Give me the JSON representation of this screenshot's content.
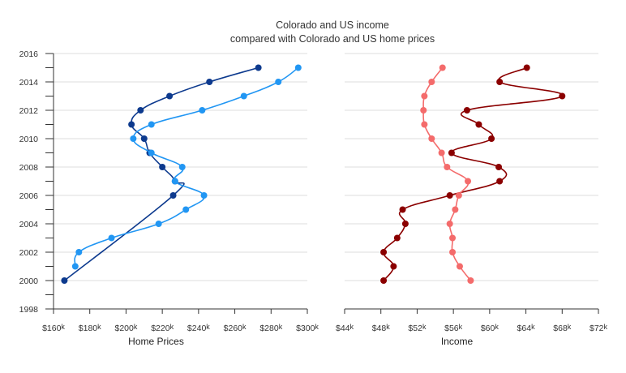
{
  "chart_data": {
    "type": "line",
    "title_lines": [
      "Colorado and US income",
      "compared with Colorado and US home prices"
    ],
    "y_axis": {
      "range": [
        1998,
        2016
      ],
      "ticks": [
        1998,
        2000,
        2002,
        2004,
        2006,
        2008,
        2010,
        2012,
        2014,
        2016
      ]
    },
    "grid": "horizontal",
    "panels": [
      {
        "xlabel": "Home Prices",
        "xlim": [
          160,
          300
        ],
        "x_ticks": [
          {
            "value": 160,
            "main": "$160",
            "suffix": "k"
          },
          {
            "value": 180,
            "main": "$180",
            "suffix": "k"
          },
          {
            "value": 200,
            "main": "$200",
            "suffix": "k"
          },
          {
            "value": 220,
            "main": "$220",
            "suffix": "k"
          },
          {
            "value": 240,
            "main": "$240",
            "suffix": "k"
          },
          {
            "value": 260,
            "main": "$260",
            "suffix": "k"
          },
          {
            "value": 280,
            "main": "$280",
            "suffix": "k"
          },
          {
            "value": 300,
            "main": "$300",
            "suffix": "k"
          }
        ],
        "series": [
          {
            "color": "#0d3a8e",
            "points": [
              [
                166,
                2000
              ],
              [
                226,
                2006
              ],
              [
                227,
                2007
              ],
              [
                220,
                2008
              ],
              [
                213,
                2009
              ],
              [
                210,
                2010
              ],
              [
                203,
                2011
              ],
              [
                208,
                2012
              ],
              [
                224,
                2013
              ],
              [
                246,
                2014
              ],
              [
                273,
                2015
              ]
            ]
          },
          {
            "color": "#2196f3",
            "points": [
              [
                172,
                2001
              ],
              [
                174,
                2002
              ],
              [
                192,
                2003
              ],
              [
                218,
                2004
              ],
              [
                233,
                2005
              ],
              [
                243,
                2006
              ],
              [
                227,
                2007
              ],
              [
                231,
                2008
              ],
              [
                214,
                2009
              ],
              [
                204,
                2010
              ],
              [
                214,
                2011
              ],
              [
                242,
                2012
              ],
              [
                265,
                2013
              ],
              [
                284,
                2014
              ],
              [
                295,
                2015
              ]
            ]
          }
        ]
      },
      {
        "xlabel": "Income",
        "xlim": [
          44,
          72
        ],
        "x_ticks": [
          {
            "value": 44,
            "main": "$44",
            "suffix": "k"
          },
          {
            "value": 48,
            "main": "$48",
            "suffix": "k"
          },
          {
            "value": 52,
            "main": "$52",
            "suffix": "k"
          },
          {
            "value": 56,
            "main": "$56",
            "suffix": "k"
          },
          {
            "value": 60,
            "main": "$60",
            "suffix": "k"
          },
          {
            "value": 64,
            "main": "$64",
            "suffix": "k"
          },
          {
            "value": 68,
            "main": "$68",
            "suffix": "k"
          },
          {
            "value": 72,
            "main": "$72",
            "suffix": "k"
          }
        ],
        "series": [
          {
            "color": "#8b0000",
            "points": [
              [
                48.3,
                2000
              ],
              [
                49.4,
                2001
              ],
              [
                48.3,
                2002
              ],
              [
                49.8,
                2003
              ],
              [
                50.7,
                2004
              ],
              [
                50.4,
                2005
              ],
              [
                55.6,
                2006
              ],
              [
                61.1,
                2007
              ],
              [
                61.0,
                2008
              ],
              [
                55.8,
                2009
              ],
              [
                60.2,
                2010
              ],
              [
                58.8,
                2011
              ],
              [
                57.5,
                2012
              ],
              [
                68.0,
                2013
              ],
              [
                61.1,
                2014
              ],
              [
                64.1,
                2015
              ]
            ]
          },
          {
            "color": "#f46b6b",
            "points": [
              [
                57.9,
                2000
              ],
              [
                56.7,
                2001
              ],
              [
                55.9,
                2002
              ],
              [
                55.9,
                2003
              ],
              [
                55.6,
                2004
              ],
              [
                56.2,
                2005
              ],
              [
                56.6,
                2006
              ],
              [
                57.6,
                2007
              ],
              [
                55.3,
                2008
              ],
              [
                54.7,
                2009
              ],
              [
                53.6,
                2010
              ],
              [
                52.8,
                2011
              ],
              [
                52.7,
                2012
              ],
              [
                52.8,
                2013
              ],
              [
                53.6,
                2014
              ],
              [
                54.8,
                2015
              ]
            ]
          }
        ]
      }
    ]
  }
}
